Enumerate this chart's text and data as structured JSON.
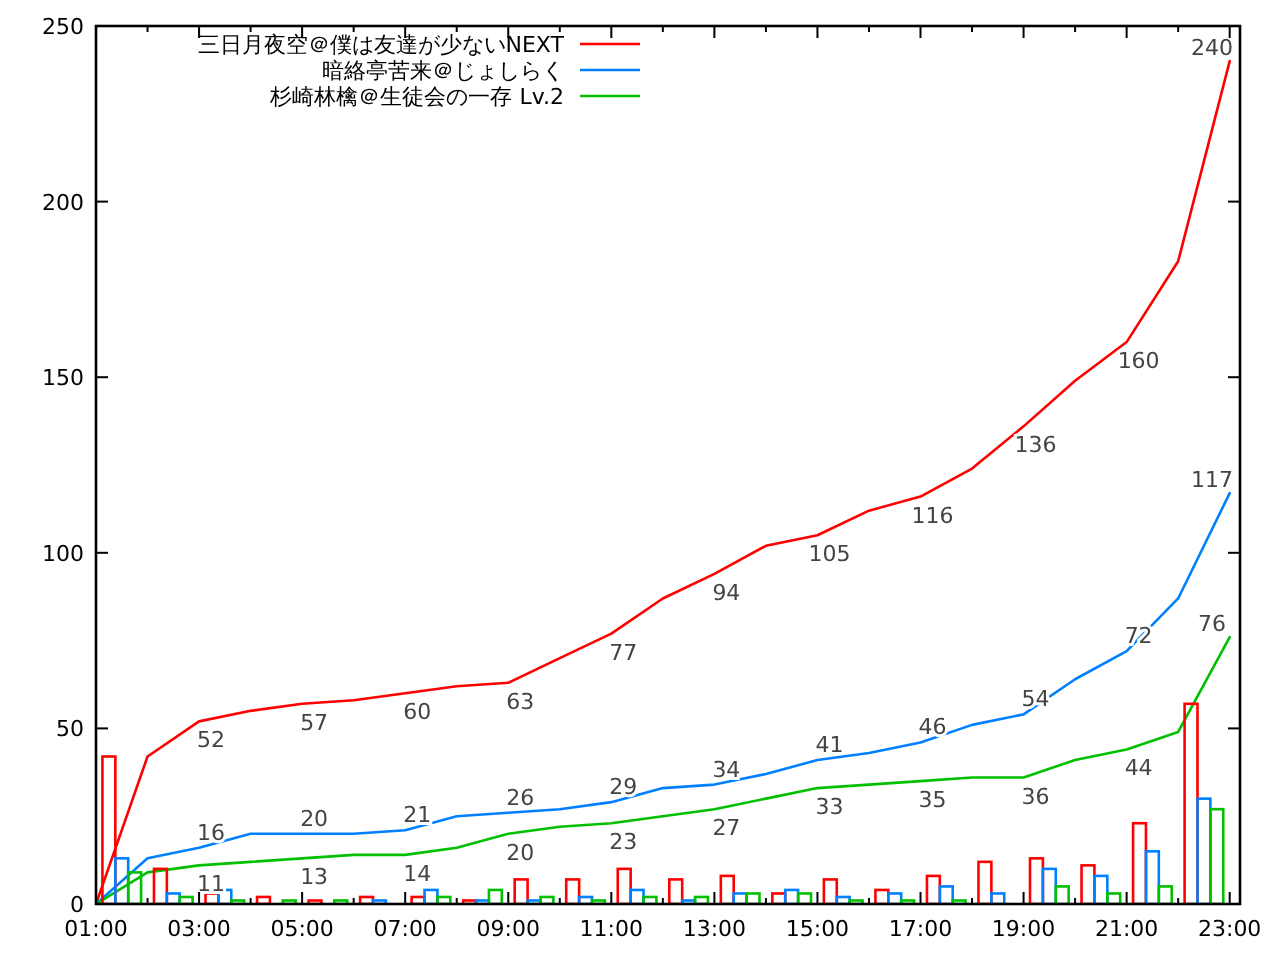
{
  "chart_data": {
    "type": "bar",
    "xlim": [
      1,
      23.2
    ],
    "ylim": [
      0,
      250
    ],
    "xticks": [
      {
        "value": 1,
        "label": "01:00"
      },
      {
        "value": 2,
        "label": null
      },
      {
        "value": 3,
        "label": "03:00"
      },
      {
        "value": 4,
        "label": null
      },
      {
        "value": 5,
        "label": "05:00"
      },
      {
        "value": 6,
        "label": null
      },
      {
        "value": 7,
        "label": "07:00"
      },
      {
        "value": 8,
        "label": null
      },
      {
        "value": 9,
        "label": "09:00"
      },
      {
        "value": 10,
        "label": null
      },
      {
        "value": 11,
        "label": "11:00"
      },
      {
        "value": 12,
        "label": null
      },
      {
        "value": 13,
        "label": "13:00"
      },
      {
        "value": 14,
        "label": null
      },
      {
        "value": 15,
        "label": "15:00"
      },
      {
        "value": 16,
        "label": null
      },
      {
        "value": 17,
        "label": "17:00"
      },
      {
        "value": 18,
        "label": null
      },
      {
        "value": 19,
        "label": "19:00"
      },
      {
        "value": 20,
        "label": null
      },
      {
        "value": 21,
        "label": "21:00"
      },
      {
        "value": 22,
        "label": null
      },
      {
        "value": 23,
        "label": "23:00"
      }
    ],
    "yticks": [
      0,
      50,
      100,
      150,
      200,
      250
    ],
    "legend": "top left",
    "grid": false,
    "series": [
      {
        "type": "line",
        "name": "三日月夜空＠僕は友達が少ないNEXT",
        "color": "#ff0000",
        "x": [
          1,
          2,
          3,
          4,
          5,
          6,
          7,
          8,
          9,
          10,
          11,
          12,
          13,
          14,
          15,
          16,
          17,
          18,
          19,
          20,
          21,
          22,
          23
        ],
        "values": [
          0,
          42,
          52,
          55,
          57,
          58,
          60,
          62,
          63,
          70,
          77,
          87,
          94,
          102,
          105,
          112,
          116,
          124,
          136,
          149,
          160,
          183,
          240
        ],
        "value_labels": [
          null,
          null,
          "52",
          null,
          "57",
          null,
          "60",
          null,
          "63",
          null,
          "77",
          null,
          "94",
          null,
          "105",
          null,
          "116",
          null,
          "136",
          null,
          "160",
          null,
          "240"
        ]
      },
      {
        "type": "line",
        "name": "暗絡亭苦来＠じょしらく",
        "color": "#0080ff",
        "x": [
          1,
          2,
          3,
          4,
          5,
          6,
          7,
          8,
          9,
          10,
          11,
          12,
          13,
          14,
          15,
          16,
          17,
          18,
          19,
          20,
          21,
          22,
          23
        ],
        "values": [
          0,
          13,
          16,
          20,
          20,
          20,
          21,
          25,
          26,
          27,
          29,
          33,
          34,
          37,
          41,
          43,
          46,
          51,
          54,
          64,
          72,
          87,
          117
        ],
        "value_labels": [
          null,
          null,
          "16",
          null,
          "20",
          null,
          "21",
          null,
          "26",
          null,
          "29",
          null,
          "34",
          null,
          "41",
          null,
          "46",
          null,
          "54",
          null,
          "72",
          null,
          "117"
        ]
      },
      {
        "type": "line",
        "name": "杉崎林檎＠生徒会の一存 Lv.2",
        "color": "#00c000",
        "x": [
          1,
          2,
          3,
          4,
          5,
          6,
          7,
          8,
          9,
          10,
          11,
          12,
          13,
          14,
          15,
          16,
          17,
          18,
          19,
          20,
          21,
          22,
          23
        ],
        "values": [
          0,
          9,
          11,
          12,
          13,
          14,
          14,
          16,
          20,
          22,
          23,
          25,
          27,
          30,
          33,
          34,
          35,
          36,
          36,
          41,
          44,
          49,
          76
        ],
        "value_labels": [
          null,
          null,
          "11",
          null,
          "13",
          null,
          "14",
          null,
          "20",
          null,
          "23",
          null,
          "27",
          null,
          "33",
          null,
          "35",
          null,
          "36",
          null,
          "44",
          null,
          "76"
        ]
      },
      {
        "color": "#ff0000",
        "x": [
          1.25,
          2.25,
          3.25,
          4.25,
          5.25,
          6.25,
          7.25,
          8.25,
          9.25,
          10.25,
          11.25,
          12.25,
          13.25,
          14.25,
          15.25,
          16.25,
          17.25,
          18.25,
          19.25,
          20.25,
          21.25,
          22.25
        ],
        "values": [
          42,
          10,
          3,
          2,
          1,
          2,
          2,
          1,
          7,
          7,
          10,
          7,
          8,
          3,
          7,
          4,
          8,
          12,
          13,
          11,
          23,
          57
        ]
      },
      {
        "color": "#0080ff",
        "x": [
          1.5,
          2.5,
          3.5,
          4.5,
          5.5,
          6.5,
          7.5,
          8.5,
          9.5,
          10.5,
          11.5,
          12.5,
          13.5,
          14.5,
          15.5,
          16.5,
          17.5,
          18.5,
          19.5,
          20.5,
          21.5,
          22.5
        ],
        "values": [
          13,
          3,
          4,
          0,
          0,
          1,
          4,
          1,
          1,
          2,
          4,
          1,
          3,
          4,
          2,
          3,
          5,
          3,
          10,
          8,
          15,
          30
        ]
      },
      {
        "color": "#00c000",
        "x": [
          1.75,
          2.75,
          3.75,
          4.75,
          5.75,
          6.75,
          7.75,
          8.75,
          9.75,
          10.75,
          11.75,
          12.75,
          13.75,
          14.75,
          15.75,
          16.75,
          17.75,
          18.75,
          19.75,
          20.75,
          21.75,
          22.75
        ],
        "values": [
          9,
          2,
          1,
          1,
          1,
          0,
          2,
          4,
          2,
          1,
          2,
          2,
          3,
          3,
          1,
          1,
          1,
          0,
          5,
          3,
          5,
          27
        ]
      }
    ]
  }
}
